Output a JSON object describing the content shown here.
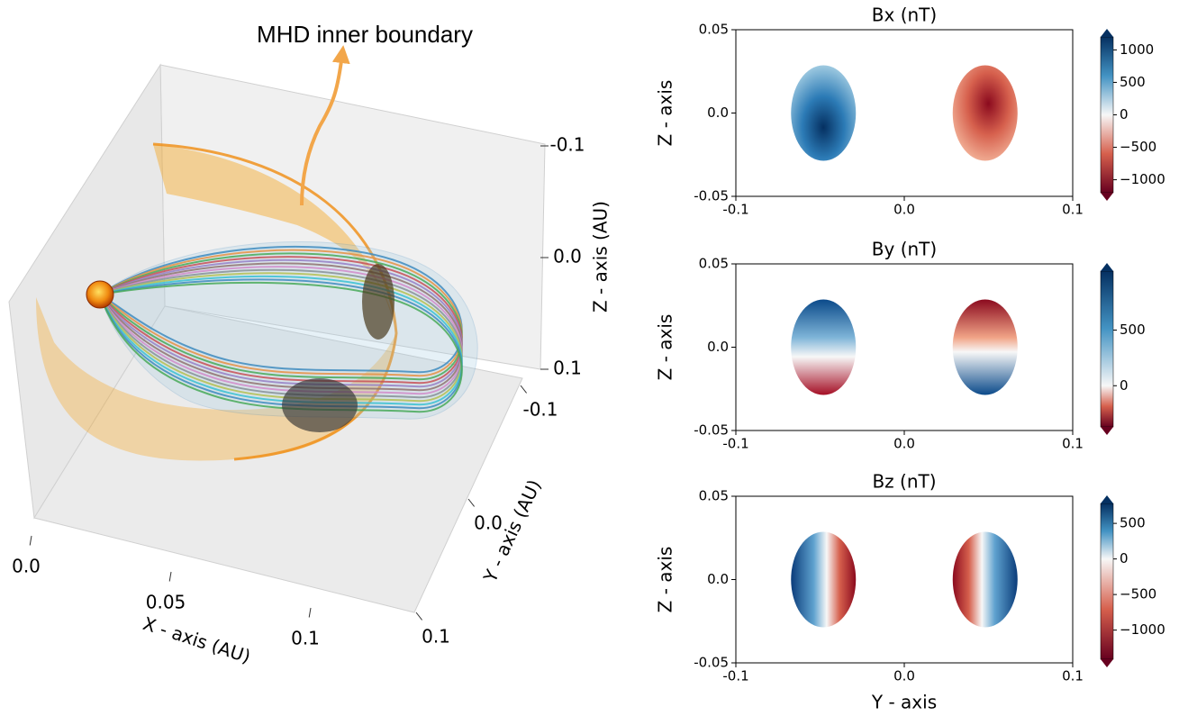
{
  "chart_data": [
    {
      "type": "line3d",
      "annotation": "MHD inner boundary",
      "xlabel": "X - axis (AU)",
      "ylabel": "Y - axis (AU)",
      "zlabel": "Z - axis (AU)",
      "xlim": [
        0,
        0.1
      ],
      "ylim": [
        -0.1,
        0.1
      ],
      "zlim": [
        -0.1,
        0.1
      ],
      "xticks": [
        {
          "value": 0,
          "label": "0.0"
        },
        0.05,
        0.1
      ],
      "yticks": [
        -0.1,
        {
          "value": 0,
          "label": "0.0"
        },
        0.1
      ],
      "zticks": [
        -0.1,
        {
          "value": 0,
          "label": "0.0"
        },
        0.1
      ]
    },
    {
      "type": "heatmap",
      "title": "Bx (nT)",
      "ylabel": "Z - axis",
      "xlim": [
        -0.1,
        0.1
      ],
      "ylim": [
        -0.05,
        0.05
      ],
      "xticks": [
        -0.1,
        {
          "value": 0,
          "label": "0.0"
        },
        0.1
      ],
      "yticks": [
        -0.05,
        {
          "value": 0,
          "label": "0.0"
        },
        0.05
      ],
      "clim": [
        -1200,
        1200
      ],
      "cticks": [
        {
          "value": -1000,
          "label": "−1000"
        },
        {
          "value": -500,
          "label": "−500"
        },
        0,
        500,
        1000
      ]
    },
    {
      "type": "heatmap",
      "title": "By (nT)",
      "ylabel": "Z - axis",
      "xlim": [
        -0.1,
        0.1
      ],
      "ylim": [
        -0.05,
        0.05
      ],
      "xticks": [
        -0.1,
        {
          "value": 0,
          "label": "0.0"
        },
        0.1
      ],
      "yticks": [
        -0.05,
        {
          "value": 0,
          "label": "0.0"
        },
        0.05
      ],
      "clim": [
        -370,
        1030
      ],
      "cticks": [
        0,
        500
      ]
    },
    {
      "type": "heatmap",
      "title": "Bz (nT)",
      "ylabel": "Z - axis",
      "xlabel": "Y - axis",
      "xlim": [
        -0.1,
        0.1
      ],
      "ylim": [
        -0.05,
        0.05
      ],
      "xticks": [
        -0.1,
        {
          "value": 0,
          "label": "0.0"
        },
        0.1
      ],
      "yticks": [
        -0.05,
        {
          "value": 0,
          "label": "0.0"
        },
        0.05
      ],
      "clim": [
        -1410,
        780
      ],
      "cticks": [
        {
          "value": -1000,
          "label": "−1000"
        },
        {
          "value": -500,
          "label": "−500"
        },
        0,
        500
      ]
    }
  ]
}
